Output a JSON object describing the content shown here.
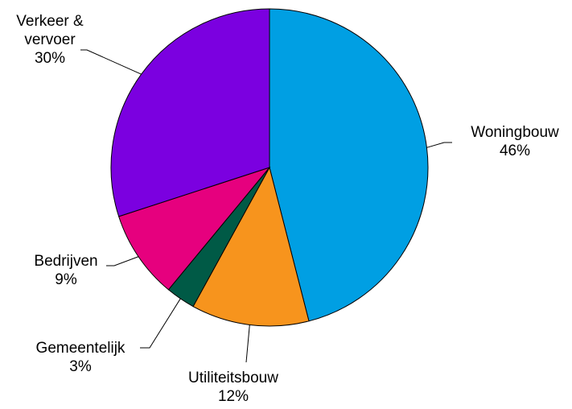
{
  "chart_data": {
    "type": "pie",
    "title": "",
    "slices": [
      {
        "label": "Woningbouw",
        "value": 46,
        "value_label": "46%",
        "color": "#009FE3"
      },
      {
        "label": "Utiliteitsbouw",
        "value": 12,
        "value_label": "12%",
        "color": "#F7941D"
      },
      {
        "label": "Gemeentelijk",
        "value": 3,
        "value_label": "3%",
        "color": "#005A46"
      },
      {
        "label": "Bedrijven",
        "value": 9,
        "value_label": "9%",
        "color": "#E6007E"
      },
      {
        "label": "Verkeer &\nvervoer",
        "value": 30,
        "value_label": "30%",
        "color": "#7B00E0"
      }
    ],
    "start_angle": "12 o'clock",
    "direction": "clockwise",
    "legend": "none",
    "labels": "outside with leader lines"
  }
}
